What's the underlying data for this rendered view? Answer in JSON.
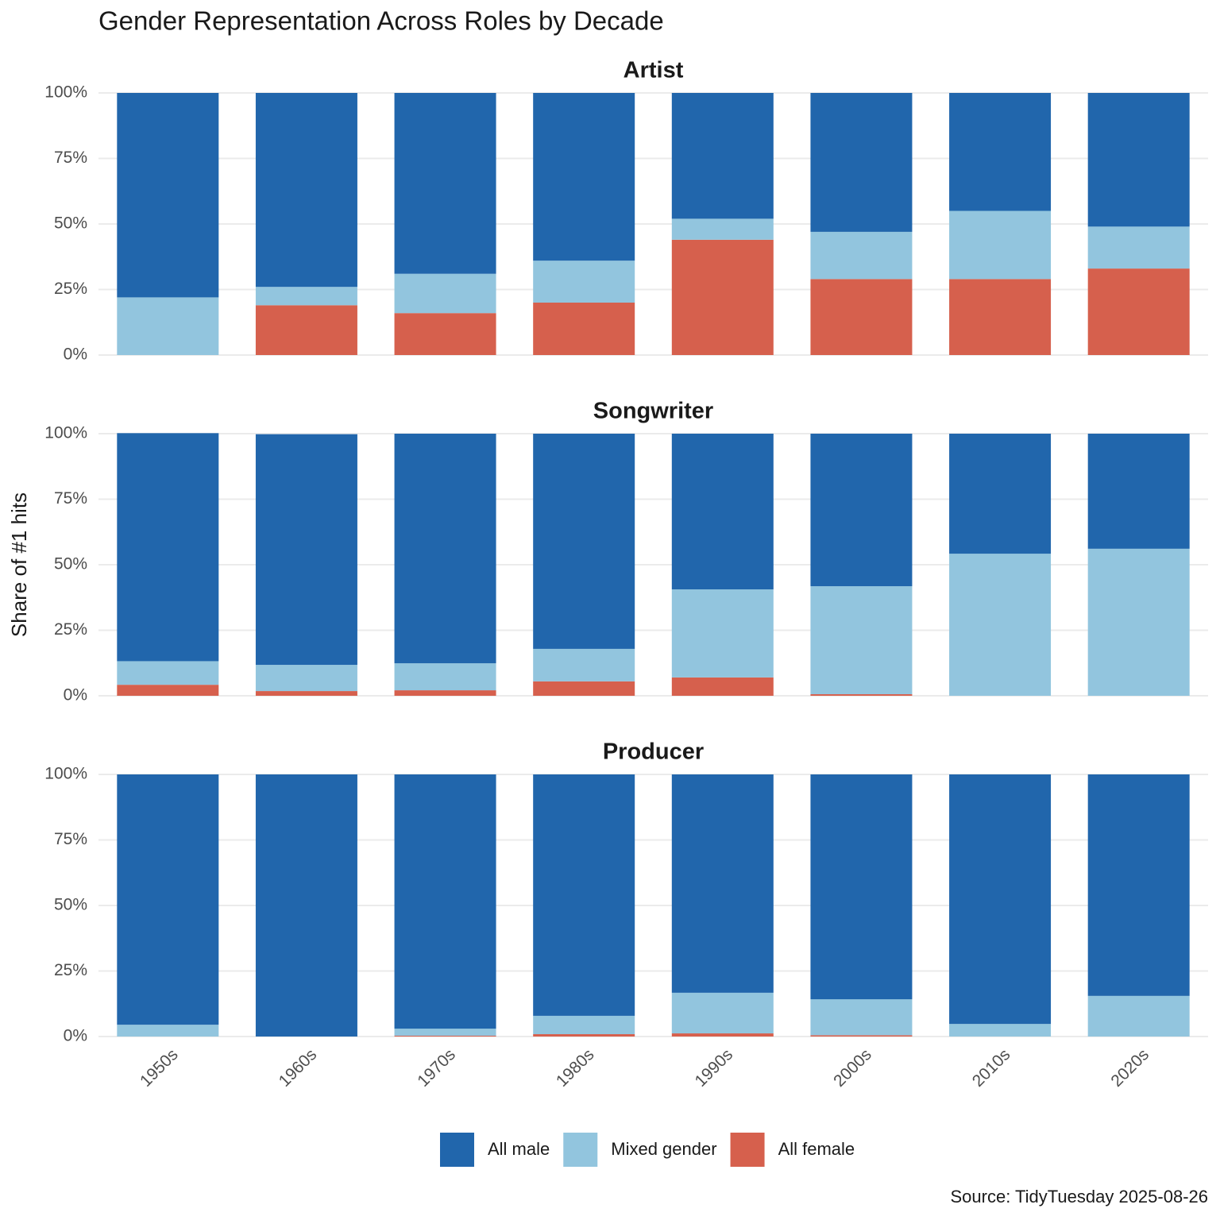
{
  "chart_data": {
    "type": "bar",
    "title": "Gender Representation Across Roles by Decade",
    "y_label": "Share of #1 hits",
    "source": "Source: TidyTuesday 2025-08-26",
    "facets": [
      "Artist",
      "Songwriter",
      "Producer"
    ],
    "categories": [
      "1950s",
      "1960s",
      "1970s",
      "1980s",
      "1990s",
      "2000s",
      "2010s",
      "2020s"
    ],
    "series": [
      {
        "name": "All male",
        "color": "#2166ac",
        "values": [
          [
            78,
            74,
            69,
            64,
            48,
            53,
            45,
            51
          ],
          [
            87,
            88,
            87.6,
            82.1,
            59.4,
            58.2,
            45.8,
            43.9
          ],
          [
            95.5,
            100,
            97,
            92.1,
            83.3,
            85.8,
            95.2,
            84.5
          ]
        ]
      },
      {
        "name": "Mixed gender",
        "color": "#92c5de",
        "values": [
          [
            22,
            7,
            15,
            16,
            8,
            18,
            26,
            16
          ],
          [
            9,
            10,
            10.3,
            12.4,
            33.6,
            41.2,
            54.2,
            56.1
          ],
          [
            4.5,
            0,
            2.7,
            7,
            15.5,
            13.7,
            4.8,
            15.5
          ]
        ]
      },
      {
        "name": "All female",
        "color": "#d6604d",
        "values": [
          [
            0,
            19,
            16,
            20,
            44,
            29,
            29,
            33
          ],
          [
            4.2,
            1.8,
            2.1,
            5.5,
            7,
            0.6,
            0,
            0
          ],
          [
            0,
            0,
            0.3,
            0.9,
            1.2,
            0.5,
            0,
            0
          ]
        ]
      }
    ],
    "stack_order": "bottom-up from last series",
    "ylim": [
      0,
      100
    ],
    "yticks": [
      {
        "value": 0,
        "label": "0%"
      },
      {
        "value": 25,
        "label": "25%"
      },
      {
        "value": 50,
        "label": "50%"
      },
      {
        "value": 75,
        "label": "75%"
      },
      {
        "value": 100,
        "label": "100%"
      }
    ],
    "grid": true,
    "legend": "bottom"
  }
}
